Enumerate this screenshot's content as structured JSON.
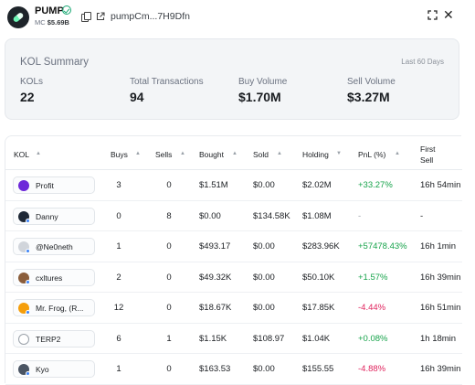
{
  "header": {
    "token_name": "PUMP",
    "mc_label": "MC",
    "mc_value": "$5.69B",
    "address": "pumpCm...7H9Dfn",
    "verified_icon": "check-circle-icon",
    "copy_icon": "copy-icon",
    "link_icon": "external-link-icon",
    "expand_icon": "expand-icon",
    "close_icon": "close-icon"
  },
  "summary": {
    "title": "KOL Summary",
    "period": "Last 60 Days",
    "stats": [
      {
        "label": "KOLs",
        "value": "22"
      },
      {
        "label": "Total Transactions",
        "value": "94"
      },
      {
        "label": "Buy Volume",
        "value": "$1.70M"
      },
      {
        "label": "Sell Volume",
        "value": "$3.27M"
      }
    ]
  },
  "table": {
    "columns": [
      "KOL",
      "Buys",
      "Sells",
      "Bought",
      "Sold",
      "Holding",
      "PnL (%)",
      "First",
      "Sell"
    ],
    "rows": [
      {
        "kol": "Profit",
        "buys": "3",
        "sells": "0",
        "bought": "$1.51M",
        "sold": "$0.00",
        "holding": "$2.02M",
        "pnl": "+33.27%",
        "pnl_kind": "pos",
        "first_sell": "16h 54min"
      },
      {
        "kol": "Danny",
        "buys": "0",
        "sells": "8",
        "bought": "$0.00",
        "sold": "$134.58K",
        "holding": "$1.08M",
        "pnl": "-",
        "pnl_kind": "muted",
        "first_sell": "-"
      },
      {
        "kol": "@Ne0neth",
        "buys": "1",
        "sells": "0",
        "bought": "$493.17",
        "sold": "$0.00",
        "holding": "$283.96K",
        "pnl": "+57478.43%",
        "pnl_kind": "pos",
        "first_sell": "16h 1min"
      },
      {
        "kol": "cxltures",
        "buys": "2",
        "sells": "0",
        "bought": "$49.32K",
        "sold": "$0.00",
        "holding": "$50.10K",
        "pnl": "+1.57%",
        "pnl_kind": "pos",
        "first_sell": "16h 39min"
      },
      {
        "kol": "Mr. Frog, (R...",
        "buys": "12",
        "sells": "0",
        "bought": "$18.67K",
        "sold": "$0.00",
        "holding": "$17.85K",
        "pnl": "-4.44%",
        "pnl_kind": "neg",
        "first_sell": "16h 51min"
      },
      {
        "kol": "TERP2",
        "buys": "6",
        "sells": "1",
        "bought": "$1.15K",
        "sold": "$108.97",
        "holding": "$1.04K",
        "pnl": "+0.08%",
        "pnl_kind": "pos",
        "first_sell": "1h 18min"
      },
      {
        "kol": "Kyo",
        "buys": "1",
        "sells": "0",
        "bought": "$163.53",
        "sold": "$0.00",
        "holding": "$155.55",
        "pnl": "-4.88%",
        "pnl_kind": "neg",
        "first_sell": "16h 39min"
      }
    ],
    "avatar_colors": [
      "#6d28d9",
      "#1f2937",
      "#d1d5db",
      "#8b5e3c",
      "#f59e0b",
      "#ffffff",
      "#4b5563"
    ]
  },
  "colors": {
    "positive": "#16a34a",
    "negative": "#e0245e",
    "accent_verified": "#18a873"
  }
}
